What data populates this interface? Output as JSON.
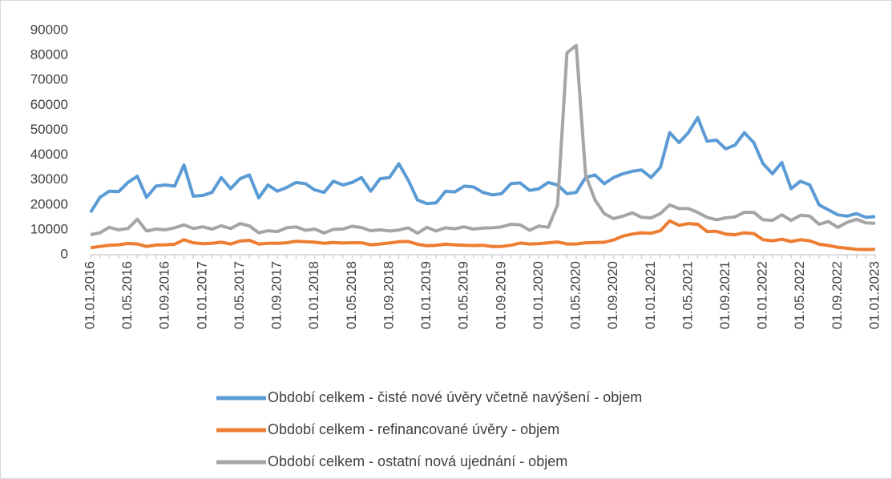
{
  "chart_data": {
    "type": "line",
    "categories": [
      "01.01.2016",
      null,
      null,
      null,
      "01.05.2016",
      null,
      null,
      null,
      "01.09.2016",
      null,
      null,
      null,
      "01.01.2017",
      null,
      null,
      null,
      "01.05.2017",
      null,
      null,
      null,
      "01.09.2017",
      null,
      null,
      null,
      "01.01.2018",
      null,
      null,
      null,
      "01.05.2018",
      null,
      null,
      null,
      "01.09.2018",
      null,
      null,
      null,
      "01.01.2019",
      null,
      null,
      null,
      "01.05.2019",
      null,
      null,
      null,
      "01.09.2019",
      null,
      null,
      null,
      "01.01.2020",
      null,
      null,
      null,
      "01.05.2020",
      null,
      null,
      null,
      "01.09.2020",
      null,
      null,
      null,
      "01.01.2021",
      null,
      null,
      null,
      "01.05.2021",
      null,
      null,
      null,
      "01.09.2021",
      null,
      null,
      null,
      "01.01.2022",
      null,
      null,
      null,
      "01.05.2022",
      null,
      null,
      null,
      "01.09.2022",
      null,
      null,
      null,
      "01.01.2023"
    ],
    "series": [
      {
        "name": "Období  celkem - čisté nové úvěry včetně navýšení - objem",
        "color": "#5b9bd5",
        "values": [
          17000,
          23000,
          25500,
          25300,
          29000,
          31500,
          23000,
          27500,
          28000,
          27500,
          36000,
          23500,
          23800,
          25000,
          31000,
          26500,
          30500,
          32000,
          22800,
          28000,
          25500,
          27000,
          29000,
          28500,
          26000,
          25000,
          29500,
          28000,
          29000,
          31000,
          25500,
          30500,
          31000,
          36500,
          30000,
          22000,
          20500,
          20800,
          25500,
          25200,
          27500,
          27200,
          25000,
          24000,
          24500,
          28500,
          28800,
          25800,
          26500,
          29000,
          28000,
          24500,
          25000,
          31000,
          32000,
          28500,
          31000,
          32500,
          33500,
          34000,
          31000,
          35000,
          49000,
          45000,
          49000,
          55000,
          45500,
          46000,
          42500,
          44000,
          49000,
          45000,
          36500,
          32500,
          37000,
          26500,
          29500,
          28000,
          20000,
          18000,
          16000,
          15500,
          16500,
          15000,
          15300
        ]
      },
      {
        "name": "Období  celkem - refinancované úvěry - objem",
        "color": "#ed7d31",
        "values": [
          2800,
          3300,
          3800,
          4000,
          4500,
          4300,
          3300,
          3900,
          4000,
          4200,
          6000,
          4800,
          4400,
          4600,
          5000,
          4300,
          5500,
          5800,
          4300,
          4600,
          4600,
          4800,
          5400,
          5200,
          5000,
          4600,
          4900,
          4700,
          4800,
          4800,
          4000,
          4300,
          4700,
          5200,
          5300,
          4200,
          3600,
          3800,
          4200,
          4000,
          3800,
          3700,
          3800,
          3300,
          3300,
          3800,
          4700,
          4300,
          4400,
          4800,
          5100,
          4300,
          4300,
          4800,
          4900,
          5000,
          5900,
          7500,
          8300,
          8800,
          8600,
          9600,
          13600,
          11800,
          12500,
          12200,
          9300,
          9400,
          8300,
          8000,
          8800,
          8500,
          6000,
          5600,
          6200,
          5300,
          6000,
          5600,
          4200,
          3700,
          3000,
          2600,
          2200,
          2100,
          2200
        ]
      },
      {
        "name": "Období celkem - ostatní nová ujednání - objem",
        "color": "#a5a5a5",
        "values": [
          8000,
          8800,
          11000,
          10000,
          10500,
          14200,
          9500,
          10300,
          10000,
          10800,
          12000,
          10500,
          11200,
          10300,
          11600,
          10500,
          12500,
          11600,
          8800,
          9600,
          9300,
          10800,
          11200,
          9800,
          10300,
          8700,
          10200,
          10300,
          11400,
          10900,
          9600,
          10000,
          9500,
          9900,
          10800,
          8600,
          11000,
          9500,
          10800,
          10400,
          11200,
          10300,
          10700,
          10800,
          11200,
          12200,
          12000,
          9800,
          11500,
          11000,
          20000,
          81000,
          84000,
          32000,
          22000,
          16500,
          14500,
          15500,
          16800,
          15000,
          14800,
          16500,
          20000,
          18500,
          18500,
          17000,
          15000,
          14000,
          14800,
          15200,
          17000,
          17000,
          14000,
          13800,
          16000,
          13800,
          15800,
          15500,
          12200,
          13300,
          11000,
          13000,
          14200,
          12800,
          12600
        ]
      }
    ],
    "ylim": [
      0,
      90000
    ],
    "yticks": [
      0,
      10000,
      20000,
      30000,
      40000,
      50000,
      60000,
      70000,
      80000,
      90000
    ],
    "grid": false
  }
}
